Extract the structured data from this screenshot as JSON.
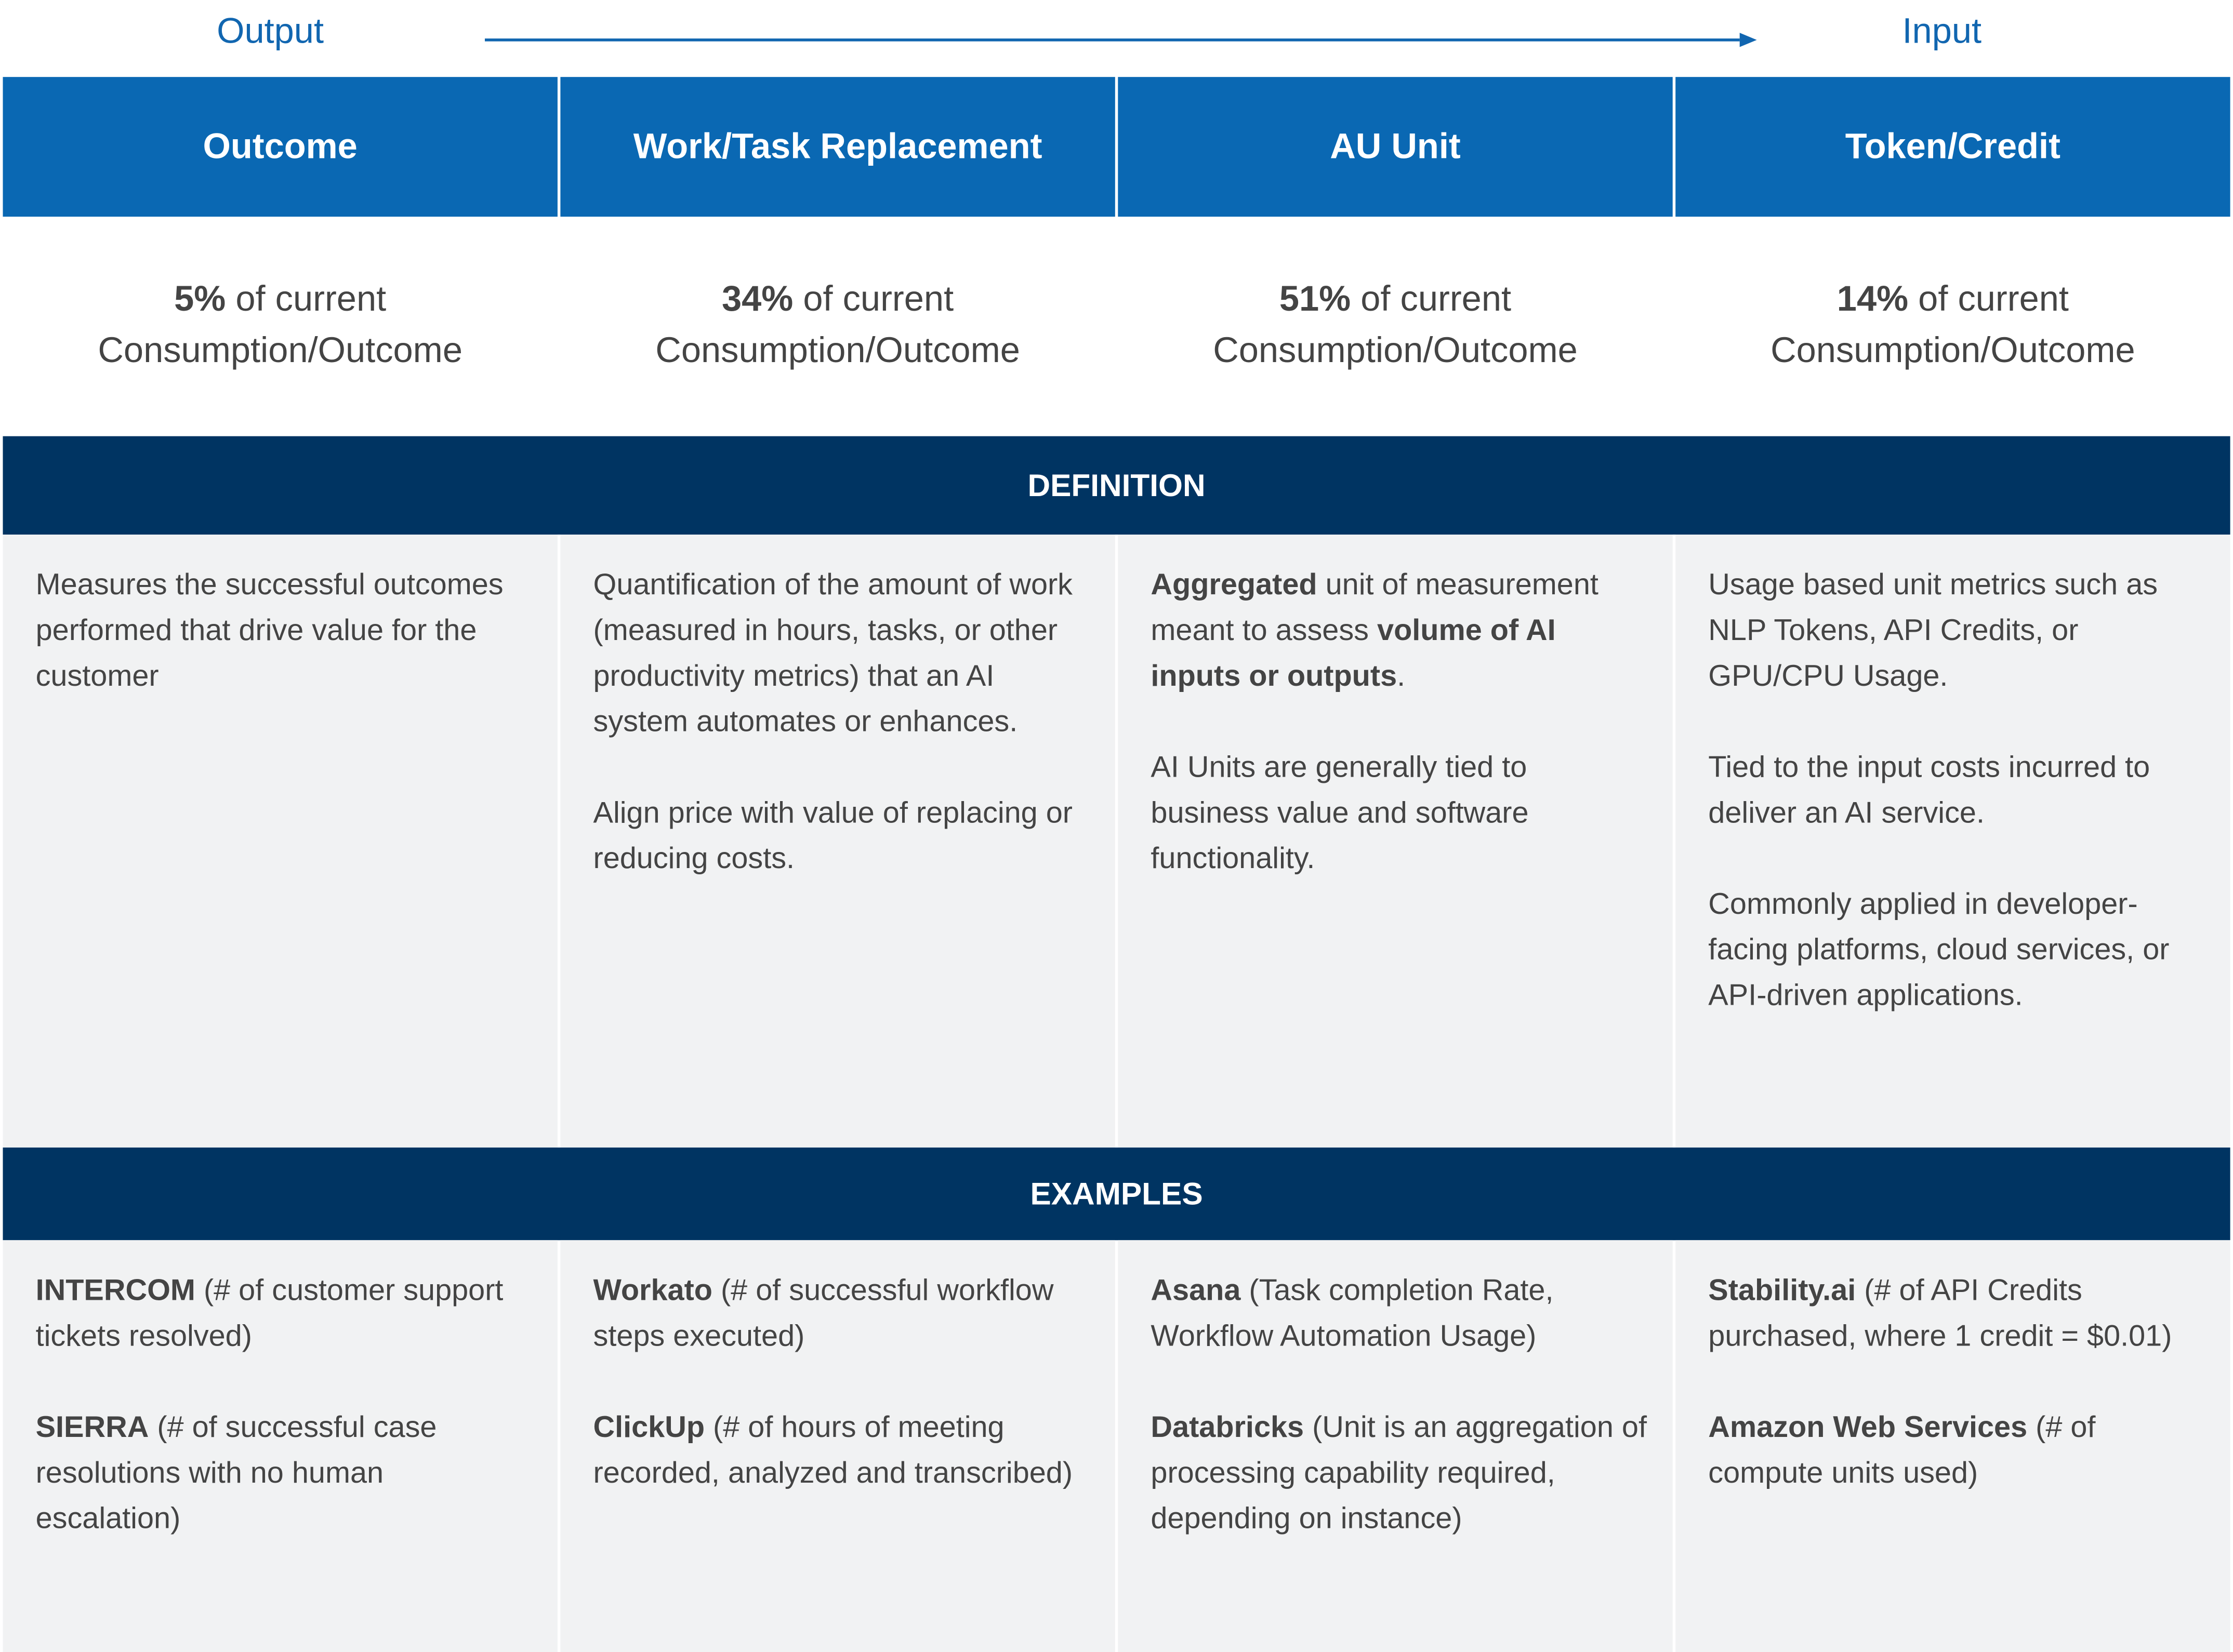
{
  "flow": {
    "start": "Output",
    "end": "Input"
  },
  "columns": [
    {
      "title": "Outcome",
      "share": {
        "value": "5%",
        "line1": " of current",
        "line2": "Consumption/Outcome"
      },
      "definition": [
        [
          {
            "text": "Measures the successful outcomes performed that drive value for the customer",
            "bold": false
          }
        ]
      ],
      "examples": [
        [
          {
            "text": "INTERCOM",
            "bold": true
          },
          {
            "text": " (# of customer support tickets resolved)",
            "bold": false
          }
        ],
        [
          {
            "text": "SIERRA",
            "bold": true
          },
          {
            "text": " (# of successful case resolutions with no human escalation)",
            "bold": false
          }
        ]
      ]
    },
    {
      "title": "Work/Task Replacement",
      "share": {
        "value": "34%",
        "line1": " of current",
        "line2": "Consumption/Outcome"
      },
      "definition": [
        [
          {
            "text": "Quantification of the amount of work (measured in hours, tasks, or other productivity metrics) that an AI system automates or enhances.",
            "bold": false
          }
        ],
        [
          {
            "text": "Align price with value of replacing or reducing costs.",
            "bold": false
          }
        ]
      ],
      "examples": [
        [
          {
            "text": "Workato",
            "bold": true
          },
          {
            "text": " (# of successful workflow steps executed)",
            "bold": false
          }
        ],
        [
          {
            "text": "ClickUp",
            "bold": true
          },
          {
            "text": " (# of hours of meeting recorded, analyzed and transcribed)",
            "bold": false
          }
        ]
      ]
    },
    {
      "title": "AU Unit",
      "share": {
        "value": "51%",
        "line1": " of current",
        "line2": "Consumption/Outcome"
      },
      "definition": [
        [
          {
            "text": "Aggregated",
            "bold": true
          },
          {
            "text": " unit of measurement meant to assess ",
            "bold": false
          },
          {
            "text": "volume of AI inputs or outputs",
            "bold": true
          },
          {
            "text": ".",
            "bold": false
          }
        ],
        [
          {
            "text": "AI Units are generally tied to business value and software functionality.",
            "bold": false
          }
        ]
      ],
      "examples": [
        [
          {
            "text": "Asana",
            "bold": true
          },
          {
            "text": " (Task completion Rate, Workflow Automation Usage)",
            "bold": false
          }
        ],
        [
          {
            "text": "Databricks",
            "bold": true
          },
          {
            "text": " (Unit is an aggregation of processing capability required, depending on instance)",
            "bold": false
          }
        ]
      ]
    },
    {
      "title": "Token/Credit",
      "share": {
        "value": "14%",
        "line1": " of current",
        "line2": "Consumption/Outcome"
      },
      "definition": [
        [
          {
            "text": "Usage based unit metrics such as NLP Tokens, API Credits, or GPU/CPU Usage.",
            "bold": false
          }
        ],
        [
          {
            "text": "Tied to the input costs incurred to deliver an AI service.",
            "bold": false
          }
        ],
        [
          {
            "text": "Commonly applied in developer-facing platforms, cloud services, or API-driven applications.",
            "bold": false
          }
        ]
      ],
      "examples": [
        [
          {
            "text": "Stability.ai",
            "bold": true
          },
          {
            "text": " (# of API Credits purchased, where 1 credit = $0.01)",
            "bold": false
          }
        ],
        [
          {
            "text": "Amazon Web Services",
            "bold": true
          },
          {
            "text": " (# of compute units used)",
            "bold": false
          }
        ]
      ]
    }
  ],
  "sections": {
    "definition": "DEFINITION",
    "examples": "EXAMPLES"
  }
}
